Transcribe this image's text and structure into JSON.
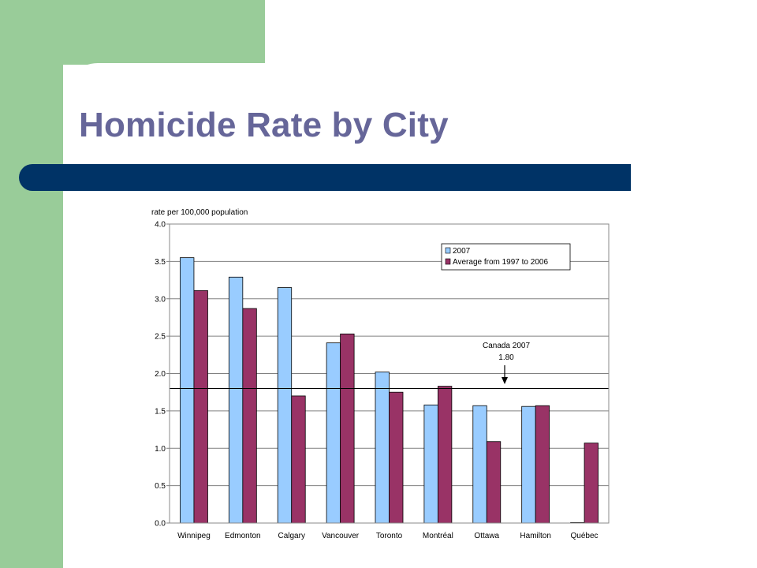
{
  "slide": {
    "title": "Homicide Rate by City",
    "colors": {
      "green": "#99cc99",
      "navy": "#003366",
      "title": "#666699"
    }
  },
  "chart_data": {
    "type": "bar",
    "ylabel": "rate per 100,000 population",
    "ylim": [
      0,
      4.0
    ],
    "yticks": [
      "4.0",
      "3.5",
      "3.0",
      "2.5",
      "2.0",
      "1.5",
      "1.0",
      "0.5",
      "0.0"
    ],
    "categories": [
      "Winnipeg",
      "Edmonton",
      "Calgary",
      "Vancouver",
      "Toronto",
      "Montréal",
      "Ottawa",
      "Hamilton",
      "Québec"
    ],
    "series": [
      {
        "name": "2007",
        "color": "#99ccff",
        "values": [
          3.55,
          3.29,
          3.15,
          2.41,
          2.02,
          1.58,
          1.57,
          1.56,
          0.0
        ]
      },
      {
        "name": "Average from 1997 to 2006",
        "color": "#993366",
        "values": [
          3.11,
          2.87,
          1.7,
          2.53,
          1.75,
          1.83,
          1.09,
          1.57,
          1.07
        ]
      }
    ],
    "reference_line": {
      "value": 1.8,
      "label": "Canada 2007",
      "value_label": "1.80"
    },
    "grid": true,
    "legend_position": "top-right"
  }
}
